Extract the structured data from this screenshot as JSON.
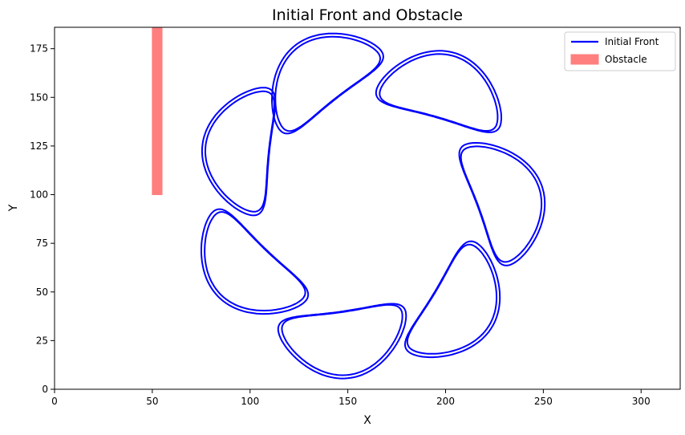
{
  "chart_data": {
    "type": "line",
    "title": "Initial Front and Obstacle",
    "xlabel": "X",
    "ylabel": "Y",
    "xlim": [
      0,
      320
    ],
    "ylim": [
      0,
      186
    ],
    "xticks": [
      0,
      50,
      100,
      150,
      200,
      250,
      300
    ],
    "yticks": [
      0,
      25,
      50,
      75,
      100,
      125,
      150,
      175
    ],
    "grid": false,
    "legend": {
      "placement": "top-right",
      "entries": [
        "Initial Front",
        "Obstacle"
      ]
    },
    "colors": {
      "front": "#0000ff",
      "obstacle": "#ff7f7f"
    },
    "obstacle": {
      "name": "Obstacle",
      "x": [
        50,
        55
      ],
      "y": [
        100,
        186
      ]
    },
    "front": {
      "name": "Initial Front",
      "shape": "kidney",
      "center": [
        160,
        95
      ],
      "count": 7,
      "radius": 62,
      "lobe_angles_deg": [
        108,
        54,
        0,
        -51,
        -102,
        -154,
        -206
      ],
      "outline_offsets": [
        -0.6,
        0.6
      ]
    }
  }
}
